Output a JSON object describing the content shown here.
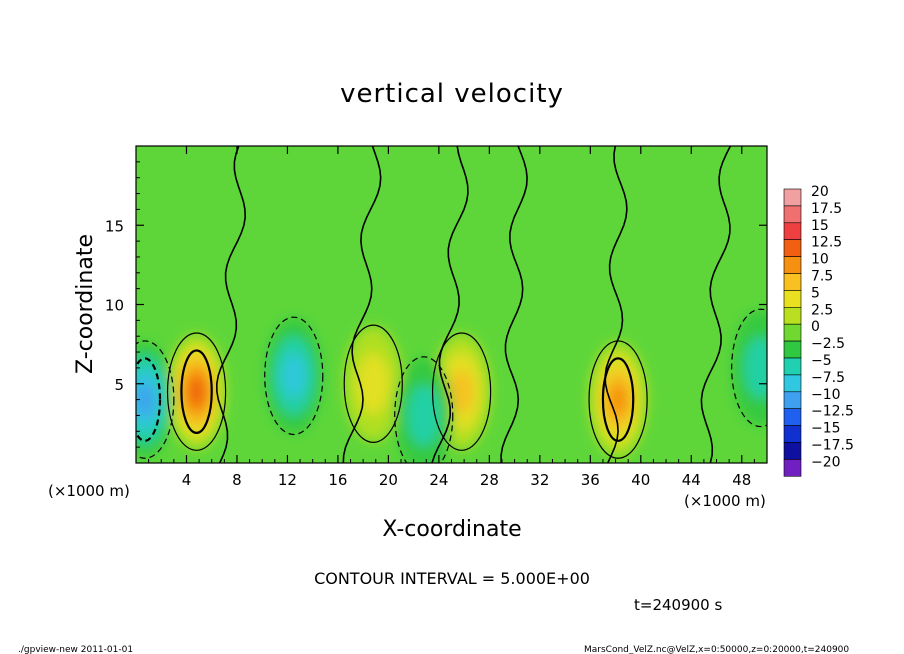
{
  "chart_data": {
    "type": "heatmap",
    "title": "vertical velocity",
    "xlabel": "X-coordinate",
    "ylabel": "Z-coordinate",
    "x_unit_note_left": "(×1000 m)",
    "x_unit_note_right": "(×1000 m)",
    "xlim": [
      0,
      50
    ],
    "ylim": [
      0,
      20
    ],
    "x_ticks": [
      4,
      8,
      12,
      16,
      20,
      24,
      28,
      32,
      36,
      40,
      44,
      48
    ],
    "y_ticks": [
      5,
      10,
      15
    ],
    "colorbar": {
      "labels": [
        "20",
        "17.5",
        "15",
        "12.5",
        "10",
        "7.5",
        "5",
        "2.5",
        "0",
        "-2.5",
        "-5",
        "-7.5",
        "-10",
        "-12.5",
        "-15",
        "-17.5",
        "-20"
      ],
      "colors": [
        "#f0a0a0",
        "#f07070",
        "#ee4040",
        "#f06010",
        "#f59010",
        "#f8c020",
        "#e8e020",
        "#b8e020",
        "#70d830",
        "#30c840",
        "#20d0b0",
        "#30c8e0",
        "#40a0f0",
        "#2060f0",
        "#1030d0",
        "#1010a0",
        "#7020c0"
      ]
    },
    "features": [
      {
        "kind": "updraft",
        "x_center": 4.8,
        "z_center": 4.5,
        "peak": 12.5
      },
      {
        "kind": "updraft",
        "x_center": 25.8,
        "z_center": 4.5,
        "peak": 7.5
      },
      {
        "kind": "updraft",
        "x_center": 38.2,
        "z_center": 4.0,
        "peak": 10
      },
      {
        "kind": "updraft",
        "x_center": 18.8,
        "z_center": 5.0,
        "peak": 5
      },
      {
        "kind": "downdraft",
        "x_center": 12.5,
        "z_center": 5.5,
        "peak": -7.5
      },
      {
        "kind": "downdraft",
        "x_center": 0.7,
        "z_center": 4.0,
        "peak": -10
      },
      {
        "kind": "downdraft",
        "x_center": 22.8,
        "z_center": 3.0,
        "peak": -5
      },
      {
        "kind": "downdraft",
        "x_center": 49.5,
        "z_center": 6.0,
        "peak": -5
      }
    ],
    "contour_interval_text": "CONTOUR INTERVAL = 5.000E+00",
    "time_text": "t=240900 s"
  },
  "footer": {
    "left": "./gpview-new   2011-01-01",
    "right": "MarsCond_VelZ.nc@VelZ,x=0:50000,z=0:20000,t=240900"
  }
}
